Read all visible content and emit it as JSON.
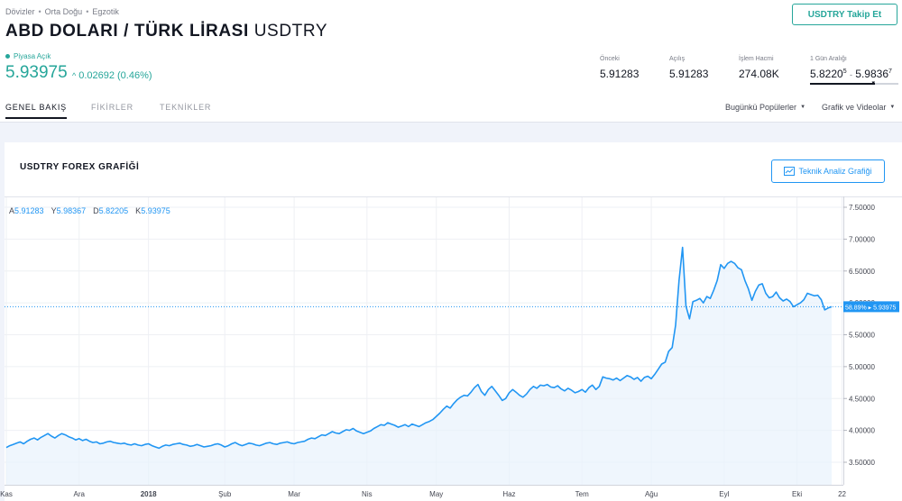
{
  "breadcrumb": [
    "Dövizler",
    "Orta Doğu",
    "Egzotik"
  ],
  "header": {
    "title": "ABD DOLARI / TÜRK LİRASI",
    "ticker": "USDTRY",
    "follow_label": "USDTRY Takip Et"
  },
  "quote": {
    "status": "Piyasa Açık",
    "price": "5.93975",
    "change_abs": "0.02692",
    "change_pct": "(0.46%)",
    "up_color": "#26a69a"
  },
  "stats": {
    "prev_label": "Önceki",
    "prev_value": "5.91283",
    "open_label": "Açılış",
    "open_value": "5.91283",
    "volume_label": "İşlem Hacmi",
    "volume_value": "274.08K",
    "range_label": "1 Gün Aralığı",
    "range_low": "5.8220",
    "range_low_sup": "5",
    "range_sep": "-",
    "range_high": "5.9836",
    "range_high_sup": "7",
    "range_fraction": 0.73
  },
  "tabs": [
    "GENEL BAKIŞ",
    "FİKİRLER",
    "TEKNİKLER"
  ],
  "dropdowns": [
    "Bugünkü Popülerler",
    "Grafik ve Videolar"
  ],
  "chart_panel": {
    "title": "USDTRY FOREX GRAFİĞİ",
    "tech_button": "Teknik Analiz Grafiği"
  },
  "ohlc": {
    "o_label": "A",
    "o": "5.91283",
    "h_label": "Y",
    "h": "5.98367",
    "l_label": "D",
    "l": "5.82205",
    "c_label": "K",
    "c": "5.93975"
  },
  "chart_data": {
    "type": "area",
    "ylim": [
      3.5,
      7.5
    ],
    "y_ticks": [
      "7.50000",
      "7.00000",
      "6.50000",
      "6.00000",
      "5.50000",
      "5.00000",
      "4.50000",
      "4.00000",
      "3.50000"
    ],
    "x_labels": [
      "Kas",
      "Ara",
      "2018",
      "Şub",
      "Mar",
      "Nis",
      "May",
      "Haz",
      "Tem",
      "Ağu",
      "Eyl",
      "Eki",
      "22"
    ],
    "x_label_index": [
      0,
      21,
      41,
      63,
      83,
      104,
      124,
      145,
      166,
      186,
      207,
      228,
      241
    ],
    "last_label_pct": "58.89%",
    "last_label_value": "5.93975",
    "last_value": 5.93975,
    "line_color": "#2196f3",
    "values": [
      3.73,
      3.76,
      3.78,
      3.8,
      3.82,
      3.79,
      3.83,
      3.86,
      3.88,
      3.85,
      3.89,
      3.92,
      3.95,
      3.91,
      3.88,
      3.92,
      3.95,
      3.93,
      3.9,
      3.88,
      3.85,
      3.87,
      3.84,
      3.86,
      3.83,
      3.81,
      3.82,
      3.79,
      3.8,
      3.82,
      3.83,
      3.81,
      3.8,
      3.79,
      3.8,
      3.78,
      3.77,
      3.79,
      3.77,
      3.76,
      3.78,
      3.79,
      3.76,
      3.74,
      3.72,
      3.75,
      3.77,
      3.76,
      3.78,
      3.79,
      3.8,
      3.78,
      3.77,
      3.75,
      3.76,
      3.78,
      3.76,
      3.74,
      3.75,
      3.76,
      3.78,
      3.79,
      3.77,
      3.74,
      3.76,
      3.79,
      3.81,
      3.78,
      3.76,
      3.78,
      3.8,
      3.79,
      3.77,
      3.76,
      3.78,
      3.8,
      3.81,
      3.79,
      3.78,
      3.8,
      3.81,
      3.82,
      3.8,
      3.79,
      3.81,
      3.82,
      3.83,
      3.86,
      3.88,
      3.87,
      3.9,
      3.93,
      3.92,
      3.95,
      3.98,
      3.96,
      3.95,
      3.98,
      4.01,
      4.0,
      4.03,
      3.99,
      3.97,
      3.95,
      3.97,
      3.99,
      4.03,
      4.06,
      4.09,
      4.08,
      4.12,
      4.1,
      4.08,
      4.05,
      4.07,
      4.09,
      4.06,
      4.1,
      4.08,
      4.06,
      4.09,
      4.12,
      4.14,
      4.17,
      4.22,
      4.27,
      4.33,
      4.38,
      4.35,
      4.42,
      4.48,
      4.52,
      4.55,
      4.54,
      4.6,
      4.67,
      4.72,
      4.61,
      4.55,
      4.64,
      4.69,
      4.62,
      4.55,
      4.47,
      4.5,
      4.59,
      4.64,
      4.6,
      4.55,
      4.52,
      4.57,
      4.64,
      4.69,
      4.66,
      4.71,
      4.7,
      4.72,
      4.68,
      4.67,
      4.7,
      4.65,
      4.62,
      4.66,
      4.63,
      4.59,
      4.61,
      4.64,
      4.6,
      4.67,
      4.71,
      4.64,
      4.69,
      4.84,
      4.82,
      4.81,
      4.79,
      4.82,
      4.78,
      4.82,
      4.86,
      4.84,
      4.8,
      4.83,
      4.77,
      4.83,
      4.85,
      4.81,
      4.88,
      4.96,
      5.04,
      5.07,
      5.24,
      5.3,
      5.65,
      6.35,
      6.87,
      5.95,
      5.75,
      6.02,
      6.04,
      6.07,
      6.0,
      6.1,
      6.07,
      6.2,
      6.35,
      6.6,
      6.54,
      6.62,
      6.65,
      6.62,
      6.55,
      6.52,
      6.35,
      6.22,
      6.04,
      6.18,
      6.28,
      6.3,
      6.15,
      6.08,
      6.1,
      6.17,
      6.08,
      6.03,
      6.06,
      6.02,
      5.94,
      5.97,
      6.0,
      6.05,
      6.15,
      6.13,
      6.11,
      6.12,
      6.05,
      5.89,
      5.92,
      5.94
    ]
  }
}
